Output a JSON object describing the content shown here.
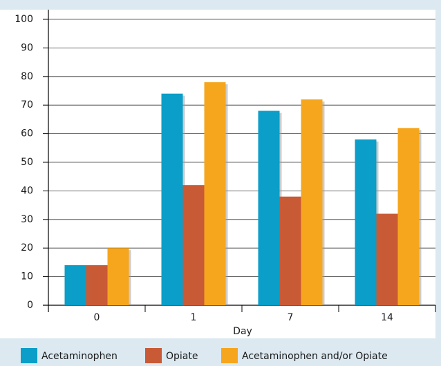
{
  "chart_data": {
    "type": "bar",
    "x_label": "Day",
    "categories": [
      "0",
      "1",
      "7",
      "14"
    ],
    "series": [
      {
        "name": "Acetaminophen",
        "color": "#0a9ec8",
        "values": [
          14,
          74,
          68,
          58
        ]
      },
      {
        "name": "Opiate",
        "color": "#c95a36",
        "values": [
          14,
          42,
          38,
          32
        ]
      },
      {
        "name": "Acetaminophen and/or Opiate",
        "color": "#f6a61d",
        "values": [
          20,
          78,
          72,
          62
        ]
      }
    ],
    "ylim": [
      0,
      100
    ],
    "yticks": [
      0,
      10,
      20,
      30,
      40,
      50,
      60,
      70,
      80,
      90,
      100
    ],
    "grid": true,
    "legend": "bottom"
  }
}
